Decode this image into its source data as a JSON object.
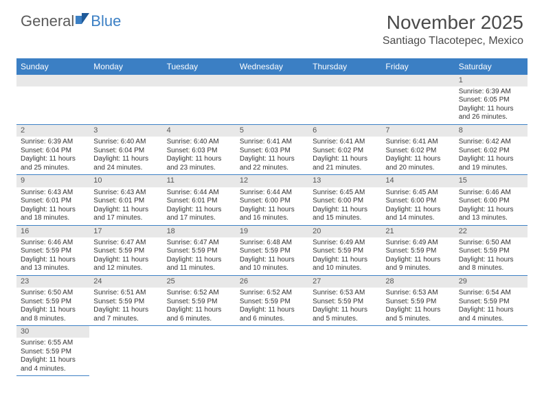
{
  "logo": {
    "text1": "General",
    "text2": "Blue"
  },
  "title": "November 2025",
  "location": "Santiago Tlacotepec, Mexico",
  "colors": {
    "header_bg": "#3b7fc4",
    "header_text": "#ffffff",
    "daynum_bg": "#e8e8e8",
    "row_border": "#3b7fc4",
    "body_text": "#333333",
    "title_text": "#4a4a4a"
  },
  "day_headers": [
    "Sunday",
    "Monday",
    "Tuesday",
    "Wednesday",
    "Thursday",
    "Friday",
    "Saturday"
  ],
  "weeks": [
    [
      null,
      null,
      null,
      null,
      null,
      null,
      {
        "n": "1",
        "sr": "6:39 AM",
        "ss": "6:05 PM",
        "dl": "11 hours and 26 minutes."
      }
    ],
    [
      {
        "n": "2",
        "sr": "6:39 AM",
        "ss": "6:04 PM",
        "dl": "11 hours and 25 minutes."
      },
      {
        "n": "3",
        "sr": "6:40 AM",
        "ss": "6:04 PM",
        "dl": "11 hours and 24 minutes."
      },
      {
        "n": "4",
        "sr": "6:40 AM",
        "ss": "6:03 PM",
        "dl": "11 hours and 23 minutes."
      },
      {
        "n": "5",
        "sr": "6:41 AM",
        "ss": "6:03 PM",
        "dl": "11 hours and 22 minutes."
      },
      {
        "n": "6",
        "sr": "6:41 AM",
        "ss": "6:02 PM",
        "dl": "11 hours and 21 minutes."
      },
      {
        "n": "7",
        "sr": "6:41 AM",
        "ss": "6:02 PM",
        "dl": "11 hours and 20 minutes."
      },
      {
        "n": "8",
        "sr": "6:42 AM",
        "ss": "6:02 PM",
        "dl": "11 hours and 19 minutes."
      }
    ],
    [
      {
        "n": "9",
        "sr": "6:43 AM",
        "ss": "6:01 PM",
        "dl": "11 hours and 18 minutes."
      },
      {
        "n": "10",
        "sr": "6:43 AM",
        "ss": "6:01 PM",
        "dl": "11 hours and 17 minutes."
      },
      {
        "n": "11",
        "sr": "6:44 AM",
        "ss": "6:01 PM",
        "dl": "11 hours and 17 minutes."
      },
      {
        "n": "12",
        "sr": "6:44 AM",
        "ss": "6:00 PM",
        "dl": "11 hours and 16 minutes."
      },
      {
        "n": "13",
        "sr": "6:45 AM",
        "ss": "6:00 PM",
        "dl": "11 hours and 15 minutes."
      },
      {
        "n": "14",
        "sr": "6:45 AM",
        "ss": "6:00 PM",
        "dl": "11 hours and 14 minutes."
      },
      {
        "n": "15",
        "sr": "6:46 AM",
        "ss": "6:00 PM",
        "dl": "11 hours and 13 minutes."
      }
    ],
    [
      {
        "n": "16",
        "sr": "6:46 AM",
        "ss": "5:59 PM",
        "dl": "11 hours and 13 minutes."
      },
      {
        "n": "17",
        "sr": "6:47 AM",
        "ss": "5:59 PM",
        "dl": "11 hours and 12 minutes."
      },
      {
        "n": "18",
        "sr": "6:47 AM",
        "ss": "5:59 PM",
        "dl": "11 hours and 11 minutes."
      },
      {
        "n": "19",
        "sr": "6:48 AM",
        "ss": "5:59 PM",
        "dl": "11 hours and 10 minutes."
      },
      {
        "n": "20",
        "sr": "6:49 AM",
        "ss": "5:59 PM",
        "dl": "11 hours and 10 minutes."
      },
      {
        "n": "21",
        "sr": "6:49 AM",
        "ss": "5:59 PM",
        "dl": "11 hours and 9 minutes."
      },
      {
        "n": "22",
        "sr": "6:50 AM",
        "ss": "5:59 PM",
        "dl": "11 hours and 8 minutes."
      }
    ],
    [
      {
        "n": "23",
        "sr": "6:50 AM",
        "ss": "5:59 PM",
        "dl": "11 hours and 8 minutes."
      },
      {
        "n": "24",
        "sr": "6:51 AM",
        "ss": "5:59 PM",
        "dl": "11 hours and 7 minutes."
      },
      {
        "n": "25",
        "sr": "6:52 AM",
        "ss": "5:59 PM",
        "dl": "11 hours and 6 minutes."
      },
      {
        "n": "26",
        "sr": "6:52 AM",
        "ss": "5:59 PM",
        "dl": "11 hours and 6 minutes."
      },
      {
        "n": "27",
        "sr": "6:53 AM",
        "ss": "5:59 PM",
        "dl": "11 hours and 5 minutes."
      },
      {
        "n": "28",
        "sr": "6:53 AM",
        "ss": "5:59 PM",
        "dl": "11 hours and 5 minutes."
      },
      {
        "n": "29",
        "sr": "6:54 AM",
        "ss": "5:59 PM",
        "dl": "11 hours and 4 minutes."
      }
    ],
    [
      {
        "n": "30",
        "sr": "6:55 AM",
        "ss": "5:59 PM",
        "dl": "11 hours and 4 minutes."
      },
      null,
      null,
      null,
      null,
      null,
      null
    ]
  ],
  "labels": {
    "sunrise": "Sunrise:",
    "sunset": "Sunset:",
    "daylight": "Daylight:"
  }
}
